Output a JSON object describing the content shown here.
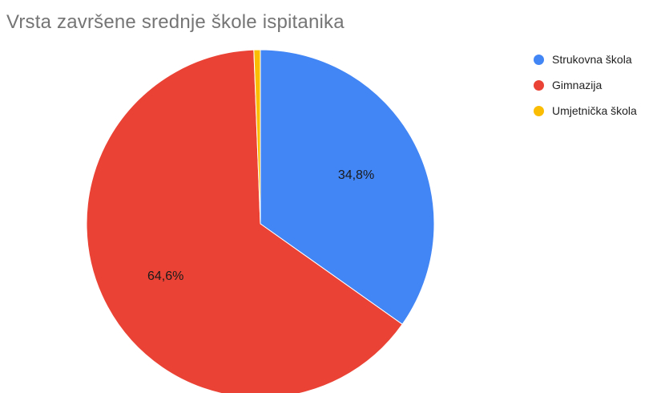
{
  "chart_data": {
    "type": "pie",
    "title": "Vrsta završene srednje škole ispitanika",
    "categories": [
      "Strukovna škola",
      "Gimnazija",
      "Umjetnička škola"
    ],
    "values": [
      34.8,
      64.6,
      0.6
    ],
    "data_labels": [
      "34,8%",
      "64,6%",
      ""
    ],
    "colors": [
      "#4285f4",
      "#ea4335",
      "#fbbc04"
    ],
    "legend_position": "right",
    "start_angle_deg": 0,
    "direction": "clockwise"
  }
}
